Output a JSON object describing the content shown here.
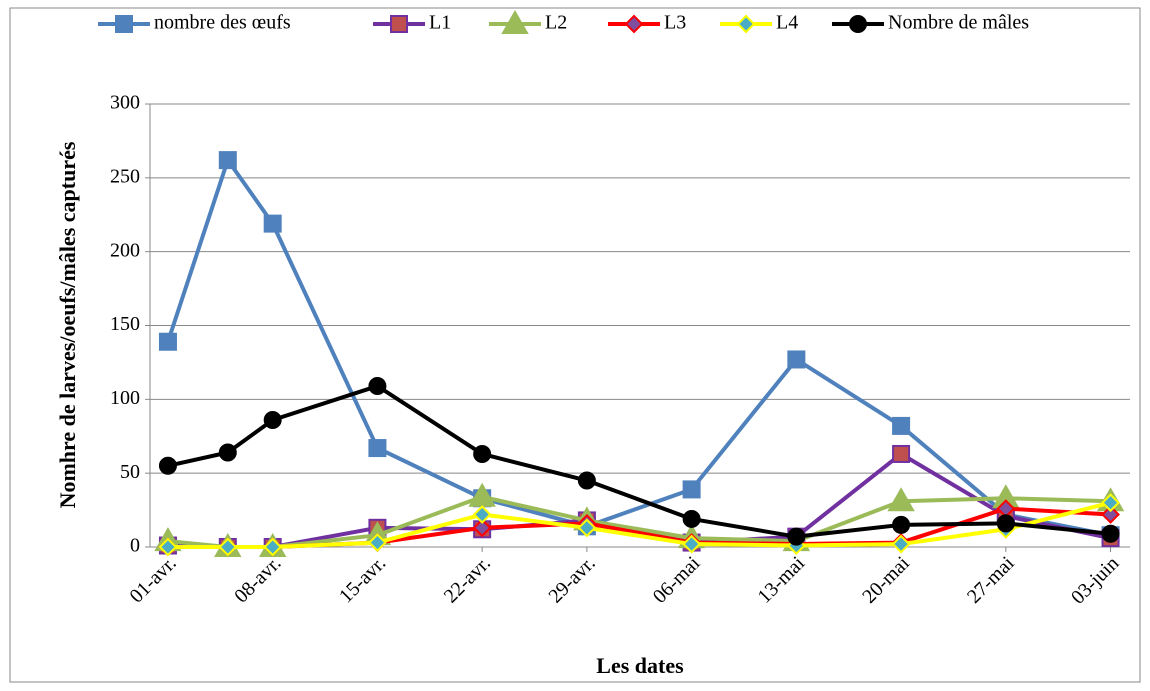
{
  "chart_data": {
    "type": "line",
    "x_label": "Les dates",
    "y_label": "Nomhre de larves/oeufs/mâles capturés",
    "x": [
      1,
      5,
      8,
      15,
      22,
      29,
      36,
      43,
      50,
      57,
      64
    ],
    "xlim": [
      -0.2,
      65.3
    ],
    "xticks": [
      {
        "value": 1,
        "label": "01-avr."
      },
      {
        "value": 8,
        "label": "08-avr."
      },
      {
        "value": 15,
        "label": "15-avr."
      },
      {
        "value": 22,
        "label": "22-avr."
      },
      {
        "value": 29,
        "label": "29-avr."
      },
      {
        "value": 36,
        "label": "06-mai"
      },
      {
        "value": 43,
        "label": "13-mai"
      },
      {
        "value": 50,
        "label": "20-mai"
      },
      {
        "value": 57,
        "label": "27-mai"
      },
      {
        "value": 64,
        "label": "03-juin"
      }
    ],
    "ylim": [
      0,
      300
    ],
    "yticks": [
      0,
      50,
      100,
      150,
      200,
      250,
      300
    ],
    "grid": true,
    "legend": "top",
    "series": [
      {
        "name": "nombre des œufs",
        "color": "#4f81bd",
        "marker": "square",
        "marker_color": "#4f81bd",
        "values": [
          139,
          262,
          219,
          67,
          33,
          14,
          39,
          127,
          82,
          22,
          8
        ]
      },
      {
        "name": "L1",
        "color": "#7030a0",
        "marker": "square",
        "marker_color": "#c0504d",
        "values": [
          1,
          0,
          0,
          13,
          12,
          18,
          3,
          7,
          63,
          21,
          6
        ]
      },
      {
        "name": "L2",
        "color": "#9bbb59",
        "marker": "triangle",
        "marker_color": "#9bbb59",
        "values": [
          4,
          0,
          0,
          8,
          34,
          18,
          6,
          4,
          31,
          33,
          31
        ]
      },
      {
        "name": "L3",
        "color": "#ff0000",
        "marker": "diamond",
        "marker_color": "#7f4f9f",
        "values": [
          0,
          0,
          0,
          3,
          13,
          16,
          3,
          2,
          3,
          26,
          22
        ]
      },
      {
        "name": "L4",
        "color": "#ffff00",
        "marker": "diamond",
        "marker_color": "#4bacc6",
        "values": [
          0,
          0,
          0,
          3,
          22,
          13,
          2,
          1,
          2,
          12,
          30
        ]
      },
      {
        "name": "Nombre de mâles",
        "color": "#000000",
        "marker": "circle",
        "marker_color": "#000000",
        "values": [
          55,
          64,
          86,
          109,
          63,
          45,
          19,
          7,
          15,
          16,
          9
        ]
      }
    ]
  }
}
